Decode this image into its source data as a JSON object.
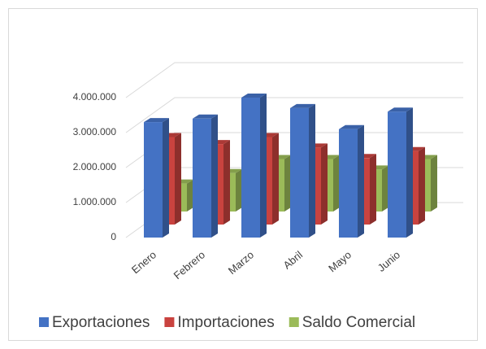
{
  "chart_data": {
    "type": "bar3d",
    "categories": [
      "Enero",
      "Febrero",
      "Marzo",
      "Abril",
      "Mayo",
      "Junio"
    ],
    "series": [
      {
        "name": "Exportaciones",
        "color": "#4472c4",
        "values": [
          3300000,
          3400000,
          4000000,
          3700000,
          3100000,
          3600000
        ]
      },
      {
        "name": "Importaciones",
        "color": "#c9433f",
        "values": [
          2500000,
          2300000,
          2500000,
          2200000,
          1900000,
          2100000
        ]
      },
      {
        "name": "Saldo Comercial",
        "color": "#9bbb59",
        "values": [
          800000,
          1100000,
          1500000,
          1500000,
          1200000,
          1500000
        ]
      }
    ],
    "ylim": [
      0,
      4000000
    ],
    "yticks": [
      0,
      {
        "value": 1000000,
        "label": "1.000.000"
      },
      {
        "value": 2000000,
        "label": "2.000.000"
      },
      {
        "value": 3000000,
        "label": "3.000.000"
      },
      {
        "value": 4000000,
        "label": "4.000.000"
      }
    ],
    "grid": true,
    "legend": "bottom"
  }
}
